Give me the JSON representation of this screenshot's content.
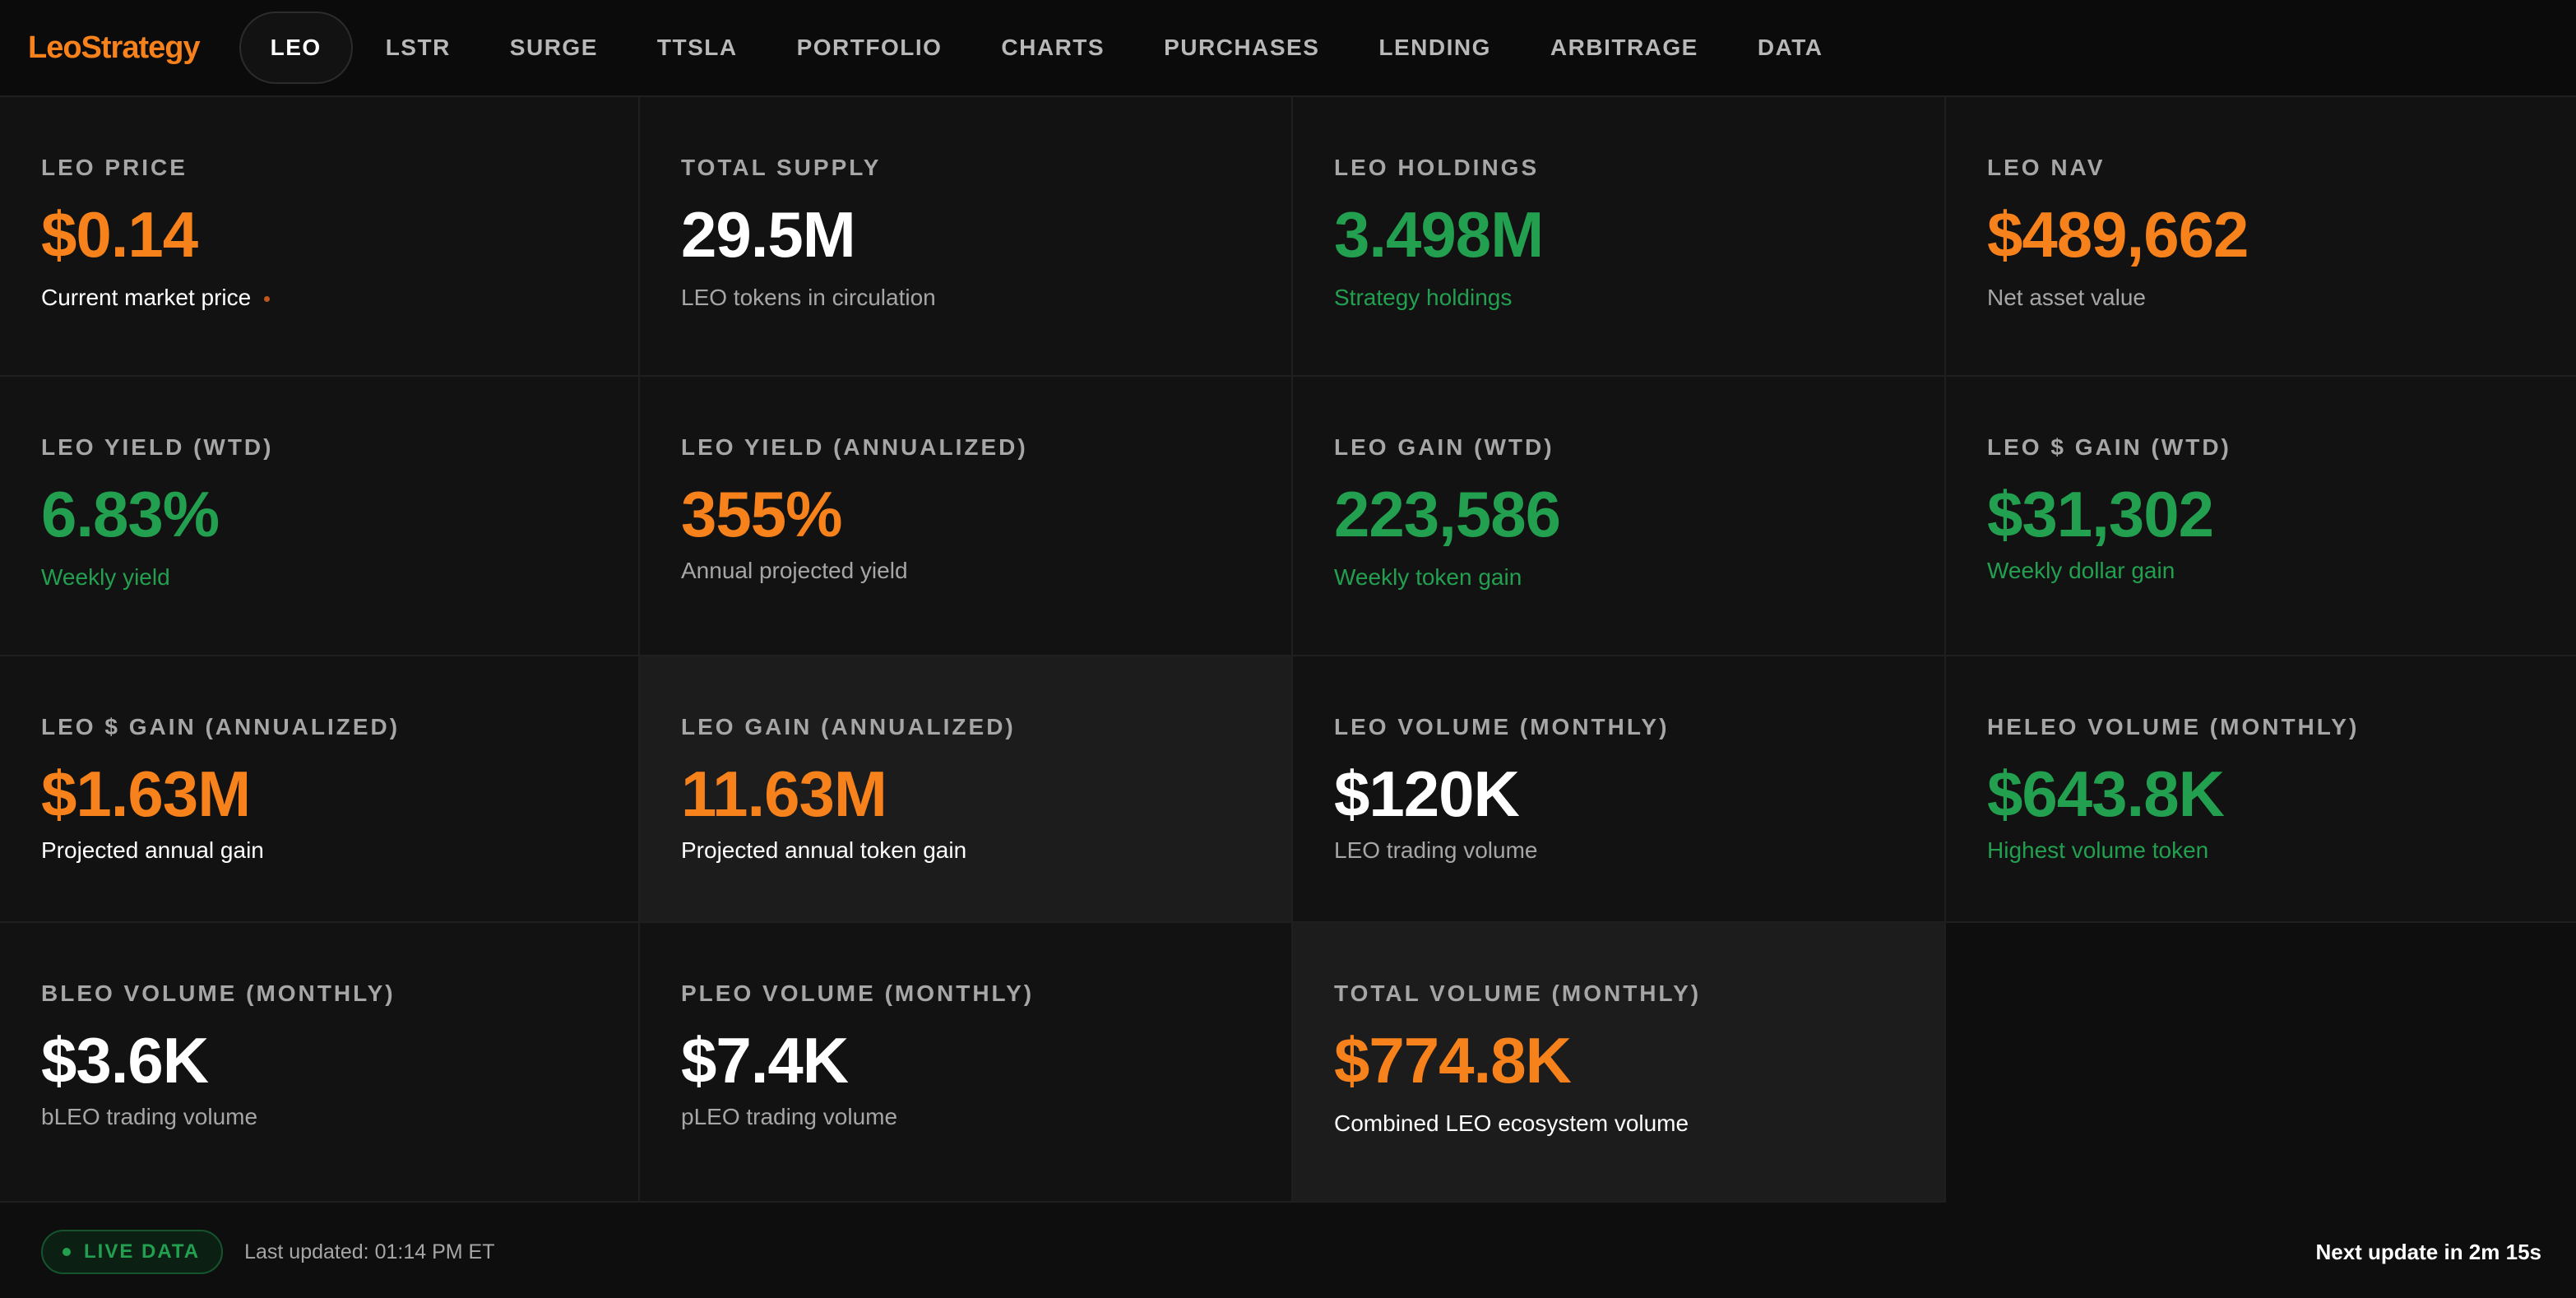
{
  "app": {
    "logo": "LeoStrategy"
  },
  "nav": {
    "tabs": [
      {
        "label": "LEO",
        "active": true
      },
      {
        "label": "LSTR"
      },
      {
        "label": "SURGE"
      },
      {
        "label": "TTSLA"
      },
      {
        "label": "PORTFOLIO"
      },
      {
        "label": "CHARTS"
      },
      {
        "label": "PURCHASES"
      },
      {
        "label": "LENDING"
      },
      {
        "label": "ARBITRAGE"
      },
      {
        "label": "DATA"
      }
    ]
  },
  "cards": [
    {
      "label": "LEO PRICE",
      "value": "$0.14",
      "sub": "Current market price",
      "value_color": "#f7821b",
      "sub_color": "#ffffff"
    },
    {
      "label": "TOTAL SUPPLY",
      "value": "29.5M",
      "sub": "LEO tokens in circulation",
      "value_color": "#ffffff",
      "sub_color": "#a6a6a6"
    },
    {
      "label": "LEO HOLDINGS",
      "value": "3.498M",
      "sub": "Strategy holdings",
      "value_color": "#22a050",
      "sub_color": "#22a050"
    },
    {
      "label": "LEO NAV",
      "value": "$489,662",
      "sub": "Net asset value",
      "value_color": "#f7821b",
      "sub_color": "#a6a6a6"
    },
    {
      "label": "LEO YIELD (WTD)",
      "value": "6.83%",
      "sub": "Weekly yield",
      "value_color": "#22a050",
      "sub_color": "#22a050"
    },
    {
      "label": "LEO YIELD (ANNUALIZED)",
      "value": "355%",
      "sub": "Annual projected yield",
      "value_color": "#f7821b",
      "sub_color": "#a6a6a6"
    },
    {
      "label": "LEO GAIN (WTD)",
      "value": "223,586",
      "sub": "Weekly token gain",
      "value_color": "#22a050",
      "sub_color": "#22a050"
    },
    {
      "label": "LEO $ GAIN (WTD)",
      "value": "$31,302",
      "sub": "Weekly dollar gain",
      "value_color": "#22a050",
      "sub_color": "#22a050"
    },
    {
      "label": "LEO $ GAIN (ANNUALIZED)",
      "value": "$1.63M",
      "sub": "Projected annual gain",
      "value_color": "#f7821b",
      "sub_color": "#ffffff"
    },
    {
      "label": "LEO GAIN (ANNUALIZED)",
      "value": "11.63M",
      "sub": "Projected annual token gain",
      "value_color": "#f7821b",
      "sub_color": "#ffffff"
    },
    {
      "label": "LEO VOLUME (MONTHLY)",
      "value": "$120K",
      "sub": "LEO trading volume",
      "value_color": "#ffffff",
      "sub_color": "#a6a6a6"
    },
    {
      "label": "HELEO VOLUME (MONTHLY)",
      "value": "$643.8K",
      "sub": "Highest volume token",
      "value_color": "#22a050",
      "sub_color": "#22a050"
    },
    {
      "label": "BLEO VOLUME (MONTHLY)",
      "value": "$3.6K",
      "sub": "bLEO trading volume",
      "value_color": "#ffffff",
      "sub_color": "#a6a6a6"
    },
    {
      "label": "PLEO VOLUME (MONTHLY)",
      "value": "$7.4K",
      "sub": "pLEO trading volume",
      "value_color": "#ffffff",
      "sub_color": "#a6a6a6"
    },
    {
      "label": "TOTAL VOLUME (MONTHLY)",
      "value": "$774.8K",
      "sub": "Combined LEO ecosystem volume",
      "value_color": "#f7821b",
      "sub_color": "#ffffff"
    }
  ],
  "footer": {
    "live_label": "LIVE DATA",
    "last_updated": "Last updated: 01:14 PM ET",
    "next_update": "Next update in 2m 15s"
  }
}
